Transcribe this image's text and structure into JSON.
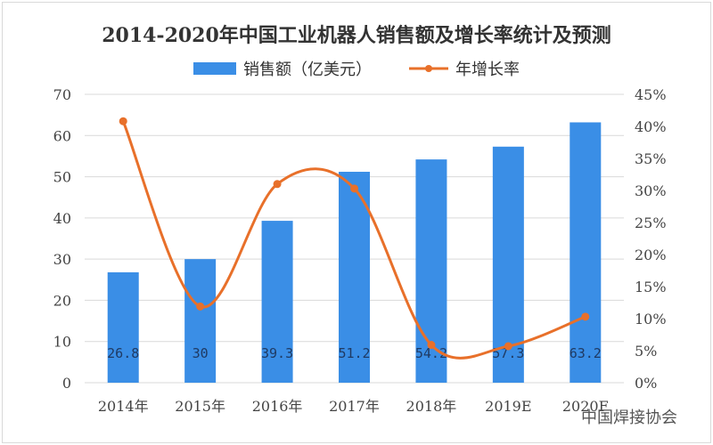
{
  "chart_data": {
    "type": "bar+line",
    "title": "2014-2020年中国工业机器人销售额及增长率统计及预测",
    "categories": [
      "2014年",
      "2015年",
      "2016年",
      "2017年",
      "2018年",
      "2019E",
      "2020F"
    ],
    "series": [
      {
        "name": "销售额（亿美元）",
        "type": "bar",
        "axis": "left",
        "color": "#3a8ee6",
        "values": [
          26.8,
          30,
          39.3,
          51.2,
          54.2,
          57.3,
          63.2
        ],
        "labels": [
          "26.8",
          "30",
          "39.3",
          "51.2",
          "54.2",
          "57.3",
          "63.2"
        ]
      },
      {
        "name": "年增长率",
        "type": "line",
        "axis": "right",
        "color": "#e8702a",
        "values": [
          40.8,
          11.9,
          31.0,
          30.3,
          5.9,
          5.7,
          10.3
        ]
      }
    ],
    "left_axis": {
      "ylim": [
        0,
        70
      ],
      "ticks": [
        "0",
        "10",
        "20",
        "30",
        "40",
        "50",
        "60",
        "70"
      ]
    },
    "right_axis": {
      "ylim": [
        0,
        45
      ],
      "ticks": [
        "0%",
        "5%",
        "10%",
        "15%",
        "20%",
        "25%",
        "30%",
        "35%",
        "40%",
        "45%"
      ]
    },
    "grid": true,
    "legend": "top-center"
  },
  "watermark": "中国焊接协会"
}
